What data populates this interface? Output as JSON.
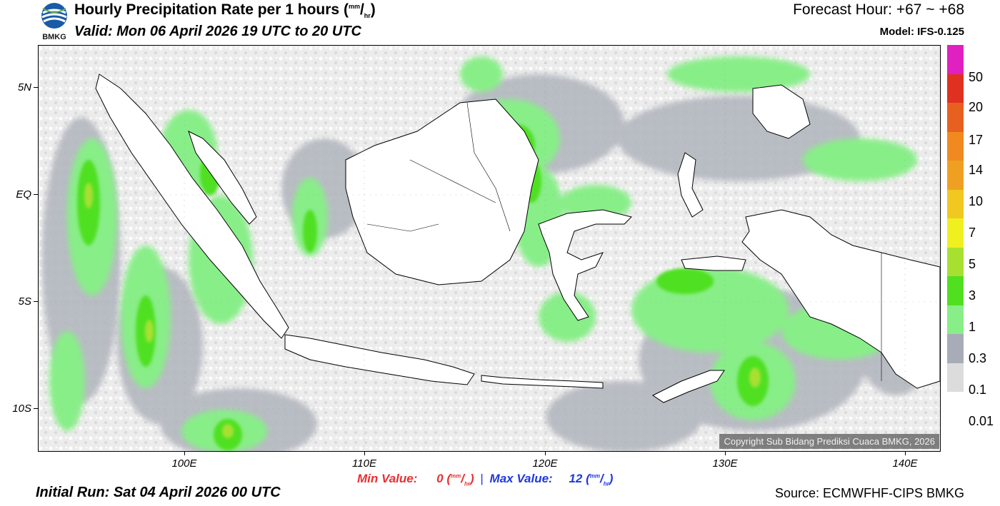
{
  "header": {
    "logo_text": "BMKG",
    "title_main": "Hourly Precipitation Rate per 1 hours",
    "title_unit_open": "(",
    "title_unit_num": "mm",
    "title_unit_slash": "/",
    "title_unit_den": "hr",
    "title_unit_close": ")",
    "valid": "Valid: Mon 06 April 2026 19 UTC to 20 UTC",
    "forecast_hour": "Forecast Hour: +67 ~ +68",
    "model": "Model: IFS-0.125"
  },
  "map": {
    "lat_labels": [
      "5N",
      "EQ",
      "5S",
      "10S"
    ],
    "lon_labels": [
      "100E",
      "110E",
      "120E",
      "130E",
      "140E"
    ],
    "copyright": "Copyright Sub Bidang Prediksi Cuaca BMKG, 2026"
  },
  "colorbar": {
    "labels": [
      "50",
      "20",
      "17",
      "14",
      "10",
      "7",
      "5",
      "3",
      "1",
      "0.3",
      "0.1",
      "0.01"
    ],
    "colors": [
      "#e020c0",
      "#e03020",
      "#e86020",
      "#f08a20",
      "#f0a020",
      "#f0c820",
      "#f0f020",
      "#a8e030",
      "#50e020",
      "#88ee88",
      "#a8acb8",
      "#dcdcdc",
      "#ffffff"
    ]
  },
  "footer": {
    "min_label": "Min Value:",
    "min_value": "0",
    "sep": "|",
    "max_label": "Max Value:",
    "max_value": "12",
    "unit_num": "mm",
    "unit_slash": "/",
    "unit_den": "hr",
    "unit_open": "(",
    "unit_close": ")",
    "initial_run": "Initial Run: Sat 04 April 2026 00 UTC",
    "source": "Source: ECMWFHF-CIPS BMKG"
  },
  "colors": {
    "min_color": "#e83030",
    "max_color": "#2038e0"
  }
}
